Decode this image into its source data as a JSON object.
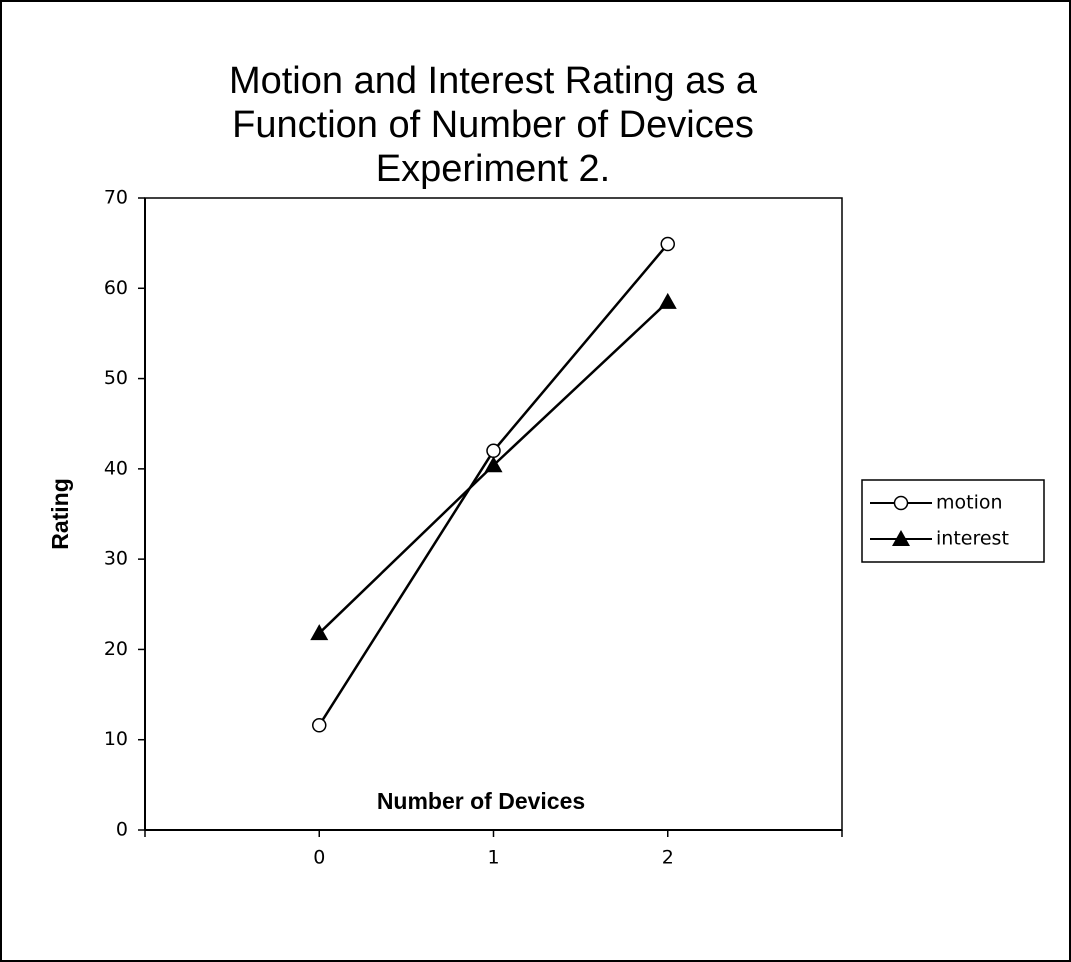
{
  "chart_data": {
    "type": "line",
    "title": [
      "Motion and Interest Rating as a",
      "Function of Number of Devices",
      "Experiment 2."
    ],
    "x_label": "Number of Devices",
    "y_label": "Rating",
    "x": [
      0,
      1,
      2
    ],
    "xlim": [
      -1,
      3
    ],
    "xticks": [
      0,
      1,
      2
    ],
    "ylim": [
      0,
      70
    ],
    "yticks": [
      0,
      10,
      20,
      30,
      40,
      50,
      60,
      70
    ],
    "series": [
      {
        "name": "motion",
        "color": "#000000",
        "marker": "circle",
        "values": [
          11.6,
          42.0,
          64.9
        ]
      },
      {
        "name": "interest",
        "color": "#000000",
        "marker": "triangle",
        "values": [
          21.8,
          40.4,
          58.5
        ]
      }
    ],
    "legend": "right"
  }
}
